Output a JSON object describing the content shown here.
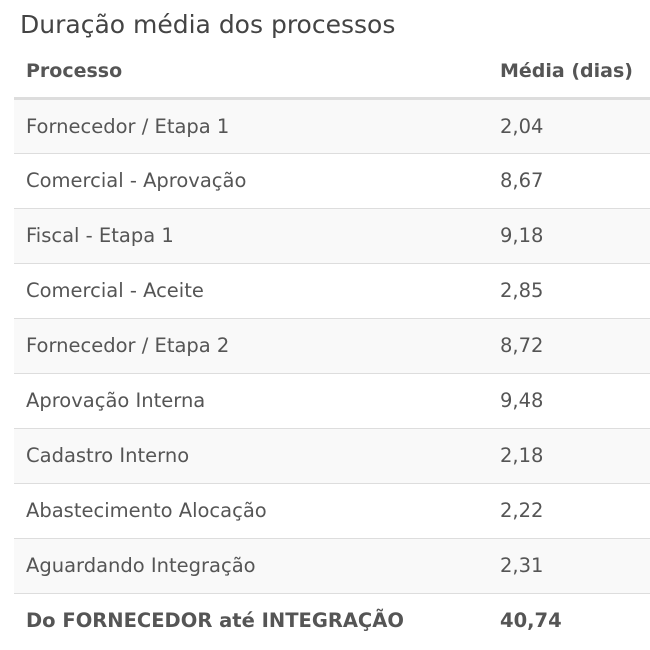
{
  "title": "Duração média dos processos",
  "table": {
    "headers": {
      "process": "Processo",
      "average": "Média (dias)"
    },
    "rows": [
      {
        "process": "Fornecedor / Etapa 1",
        "average": "2,04"
      },
      {
        "process": "Comercial - Aprovação",
        "average": "8,67"
      },
      {
        "process": "Fiscal - Etapa 1",
        "average": "9,18"
      },
      {
        "process": "Comercial - Aceite",
        "average": "2,85"
      },
      {
        "process": "Fornecedor / Etapa 2",
        "average": "8,72"
      },
      {
        "process": "Aprovação Interna",
        "average": "9,48"
      },
      {
        "process": "Cadastro Interno",
        "average": "2,18"
      },
      {
        "process": "Abastecimento Alocação",
        "average": "2,22"
      },
      {
        "process": "Aguardando Integração",
        "average": "2,31"
      }
    ],
    "total": {
      "process": "Do FORNECEDOR até INTEGRAÇÃO",
      "average": "40,74"
    }
  },
  "colors": {
    "text": "#555555",
    "title": "#444444",
    "row_stripe": "#f9f9f9",
    "border": "#dddddd"
  }
}
